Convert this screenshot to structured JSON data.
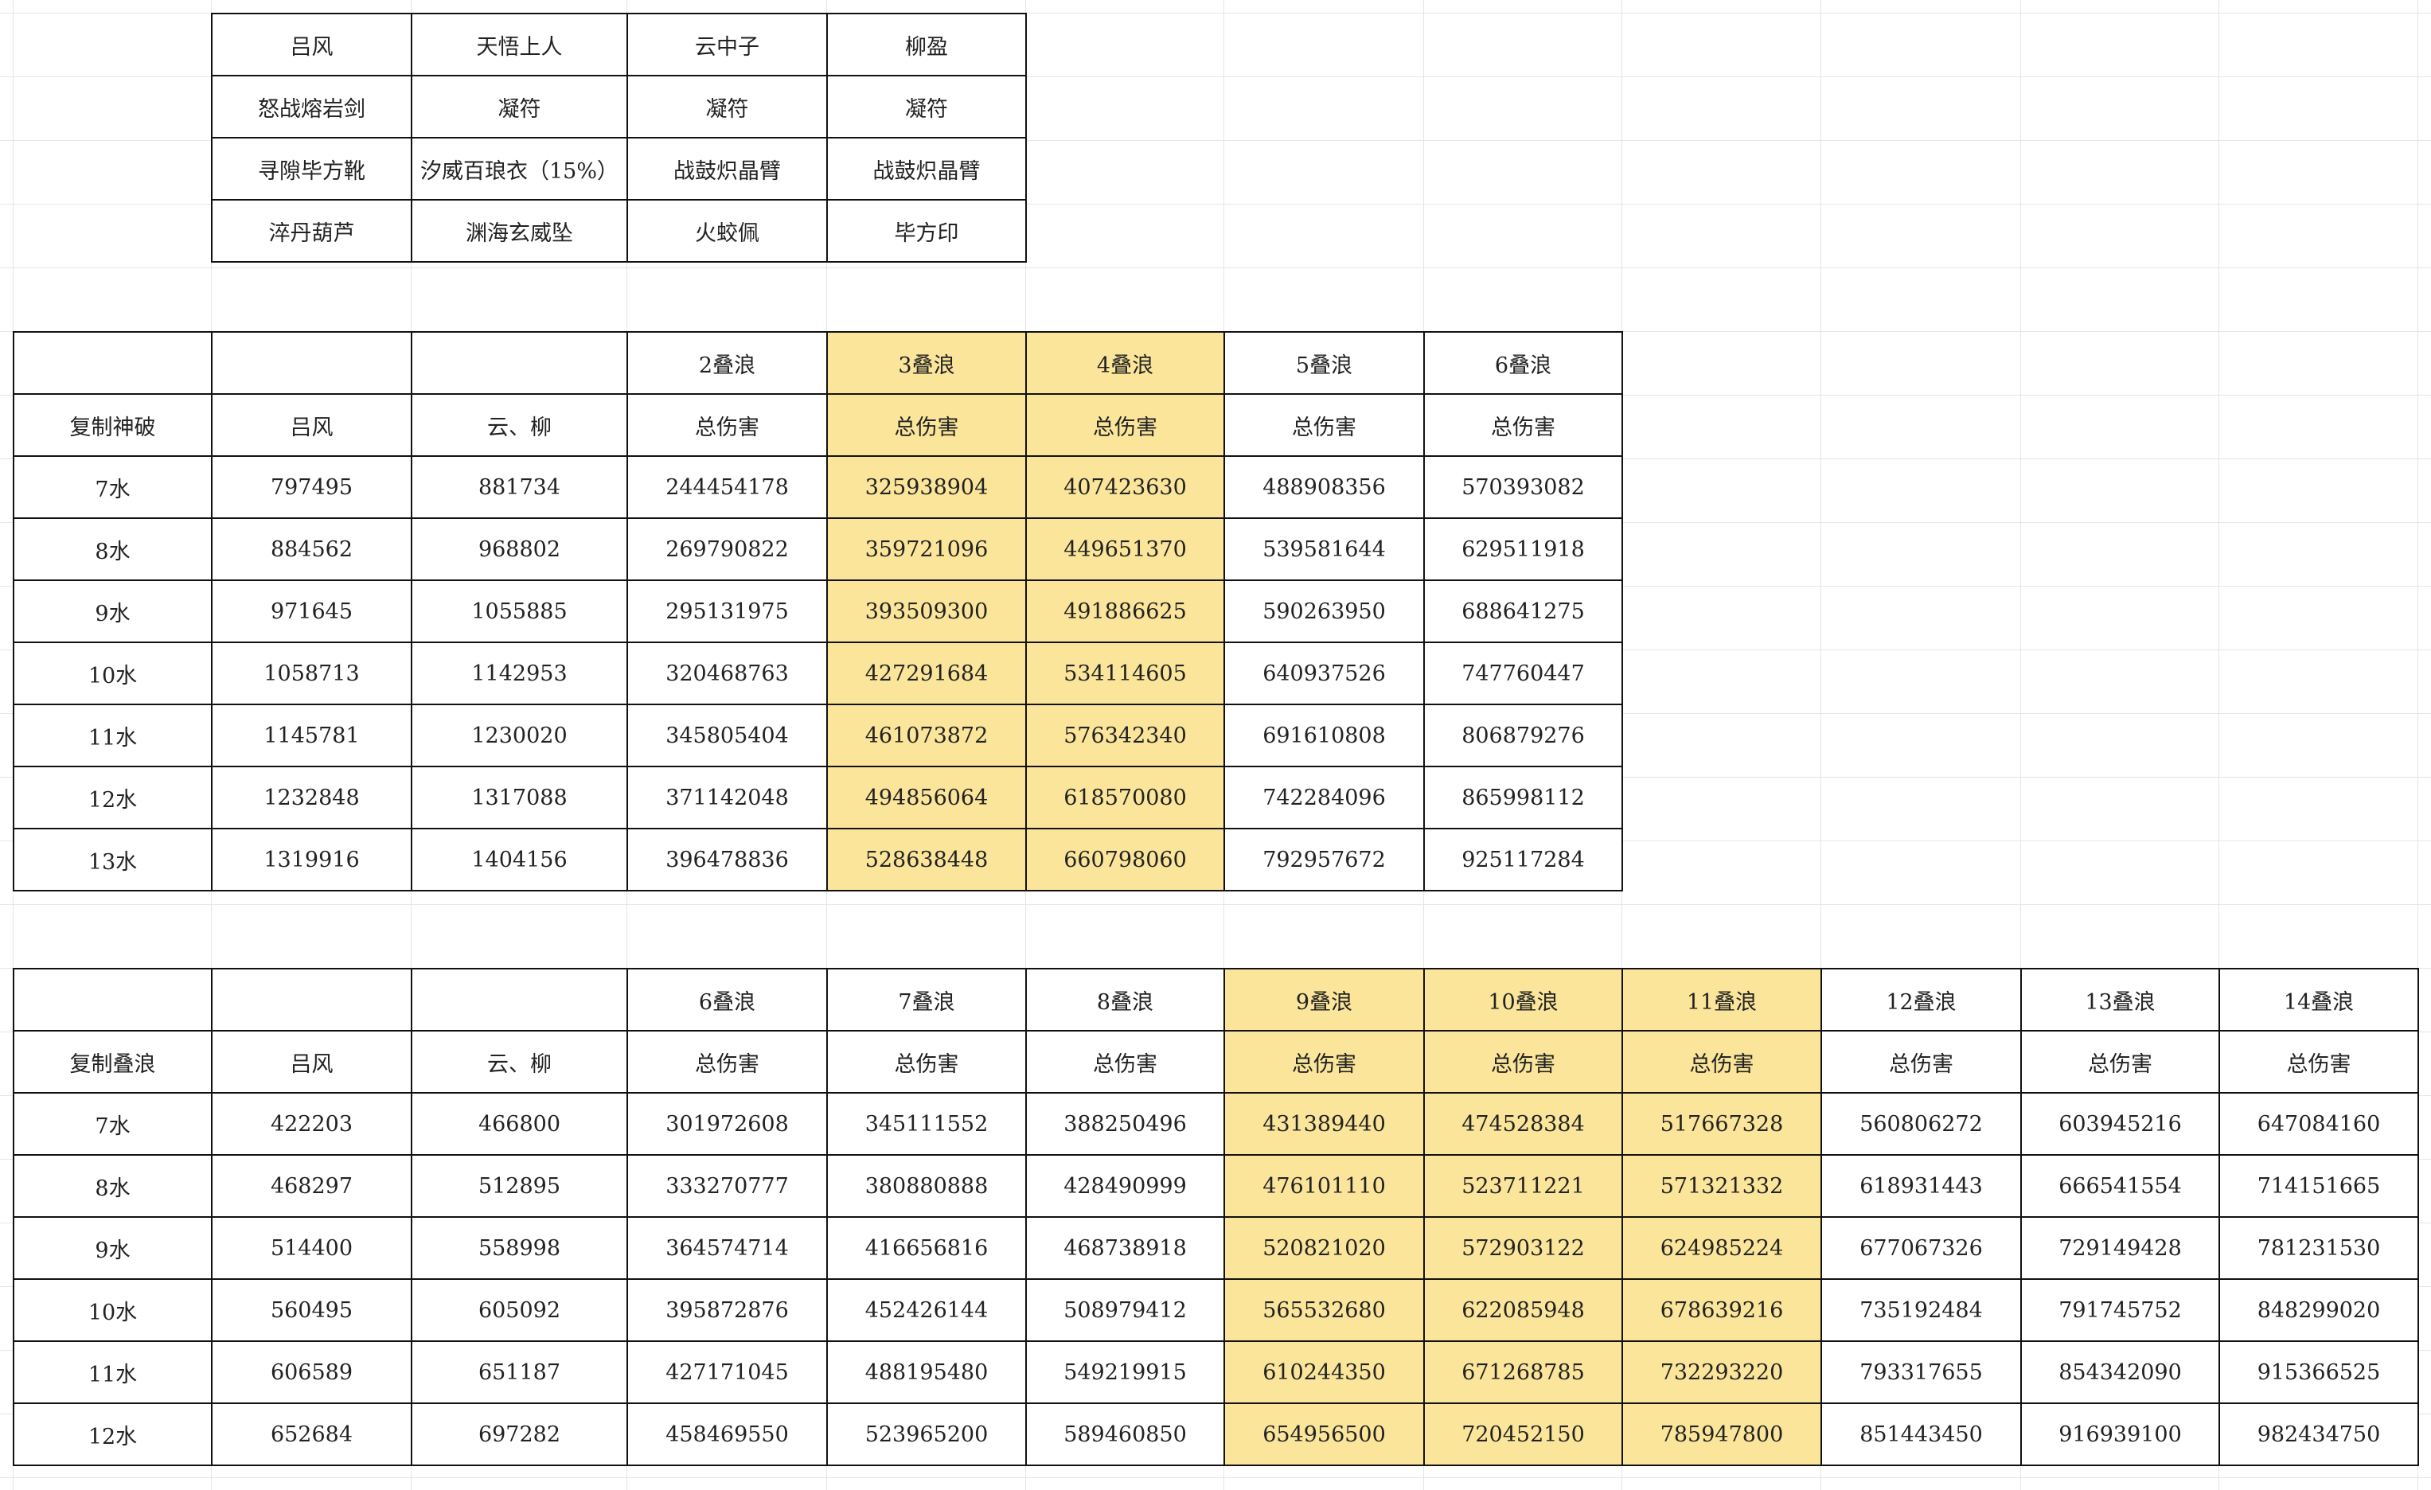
{
  "highlight_color": "#fbe59a",
  "equipment_table": {
    "rows": [
      [
        "吕风",
        "天悟上人",
        "云中子",
        "柳盈"
      ],
      [
        "怒战熔岩剑",
        "凝符",
        "凝符",
        "凝符"
      ],
      [
        "寻隙毕方靴",
        "汐威百琅衣（15%）",
        "战鼓炽晶臂",
        "战鼓炽晶臂"
      ],
      [
        "淬丹葫芦",
        "渊海玄威坠",
        "火蛟佩",
        "毕方印"
      ]
    ]
  },
  "shenpo_table": {
    "highlight_columns": [
      4,
      5
    ],
    "rows": [
      [
        "",
        "",
        "",
        "2叠浪",
        "3叠浪",
        "4叠浪",
        "5叠浪",
        "6叠浪"
      ],
      [
        "复制神破",
        "吕风",
        "云、柳",
        "总伤害",
        "总伤害",
        "总伤害",
        "总伤害",
        "总伤害"
      ],
      [
        "7水",
        "797495",
        "881734",
        "244454178",
        "325938904",
        "407423630",
        "488908356",
        "570393082"
      ],
      [
        "8水",
        "884562",
        "968802",
        "269790822",
        "359721096",
        "449651370",
        "539581644",
        "629511918"
      ],
      [
        "9水",
        "971645",
        "1055885",
        "295131975",
        "393509300",
        "491886625",
        "590263950",
        "688641275"
      ],
      [
        "10水",
        "1058713",
        "1142953",
        "320468763",
        "427291684",
        "534114605",
        "640937526",
        "747760447"
      ],
      [
        "11水",
        "1145781",
        "1230020",
        "345805404",
        "461073872",
        "576342340",
        "691610808",
        "806879276"
      ],
      [
        "12水",
        "1232848",
        "1317088",
        "371142048",
        "494856064",
        "618570080",
        "742284096",
        "865998112"
      ],
      [
        "13水",
        "1319916",
        "1404156",
        "396478836",
        "528638448",
        "660798060",
        "792957672",
        "925117284"
      ]
    ]
  },
  "dielang_table": {
    "highlight_columns": [
      6,
      7,
      8
    ],
    "rows": [
      [
        "",
        "",
        "",
        "6叠浪",
        "7叠浪",
        "8叠浪",
        "9叠浪",
        "10叠浪",
        "11叠浪",
        "12叠浪",
        "13叠浪",
        "14叠浪"
      ],
      [
        "复制叠浪",
        "吕风",
        "云、柳",
        "总伤害",
        "总伤害",
        "总伤害",
        "总伤害",
        "总伤害",
        "总伤害",
        "总伤害",
        "总伤害",
        "总伤害"
      ],
      [
        "7水",
        "422203",
        "466800",
        "301972608",
        "345111552",
        "388250496",
        "431389440",
        "474528384",
        "517667328",
        "560806272",
        "603945216",
        "647084160"
      ],
      [
        "8水",
        "468297",
        "512895",
        "333270777",
        "380880888",
        "428490999",
        "476101110",
        "523711221",
        "571321332",
        "618931443",
        "666541554",
        "714151665"
      ],
      [
        "9水",
        "514400",
        "558998",
        "364574714",
        "416656816",
        "468738918",
        "520821020",
        "572903122",
        "624985224",
        "677067326",
        "729149428",
        "781231530"
      ],
      [
        "10水",
        "560495",
        "605092",
        "395872876",
        "452426144",
        "508979412",
        "565532680",
        "622085948",
        "678639216",
        "735192484",
        "791745752",
        "848299020"
      ],
      [
        "11水",
        "606589",
        "651187",
        "427171045",
        "488195480",
        "549219915",
        "610244350",
        "671268785",
        "732293220",
        "793317655",
        "854342090",
        "915366525"
      ],
      [
        "12水",
        "652684",
        "697282",
        "458469550",
        "523965200",
        "589460850",
        "654956500",
        "720452150",
        "785947800",
        "851443450",
        "916939100",
        "982434750"
      ]
    ]
  }
}
